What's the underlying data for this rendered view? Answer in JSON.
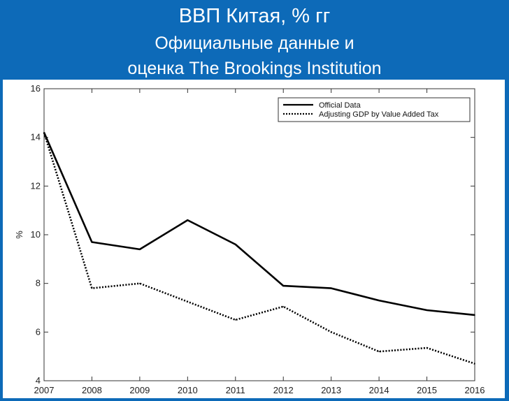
{
  "header": {
    "title": "ВВП Китая, % гг",
    "subtitle_line1": "Официальные данные и",
    "subtitle_line2": "оценка The Brookings Institution"
  },
  "chart_data": {
    "type": "line",
    "ylabel": "%",
    "xlabel": "",
    "ylim": [
      4,
      16
    ],
    "yticks": [
      4,
      6,
      8,
      10,
      12,
      14,
      16
    ],
    "x": [
      2007,
      2008,
      2009,
      2010,
      2011,
      2012,
      2013,
      2014,
      2015,
      2016
    ],
    "grid": false,
    "legend_position": "top-right",
    "series": [
      {
        "name": "Official Data",
        "style": "solid",
        "values": [
          14.2,
          9.7,
          9.4,
          10.6,
          9.6,
          7.9,
          7.8,
          7.3,
          6.9,
          6.7
        ]
      },
      {
        "name": "Adjusting GDP by Value Added Tax",
        "style": "dotted",
        "values": [
          14.2,
          7.8,
          8.0,
          7.25,
          6.5,
          7.05,
          6.0,
          5.2,
          5.35,
          4.7
        ]
      }
    ],
    "colors": {
      "line": "#000000",
      "axis": "#333333"
    }
  }
}
